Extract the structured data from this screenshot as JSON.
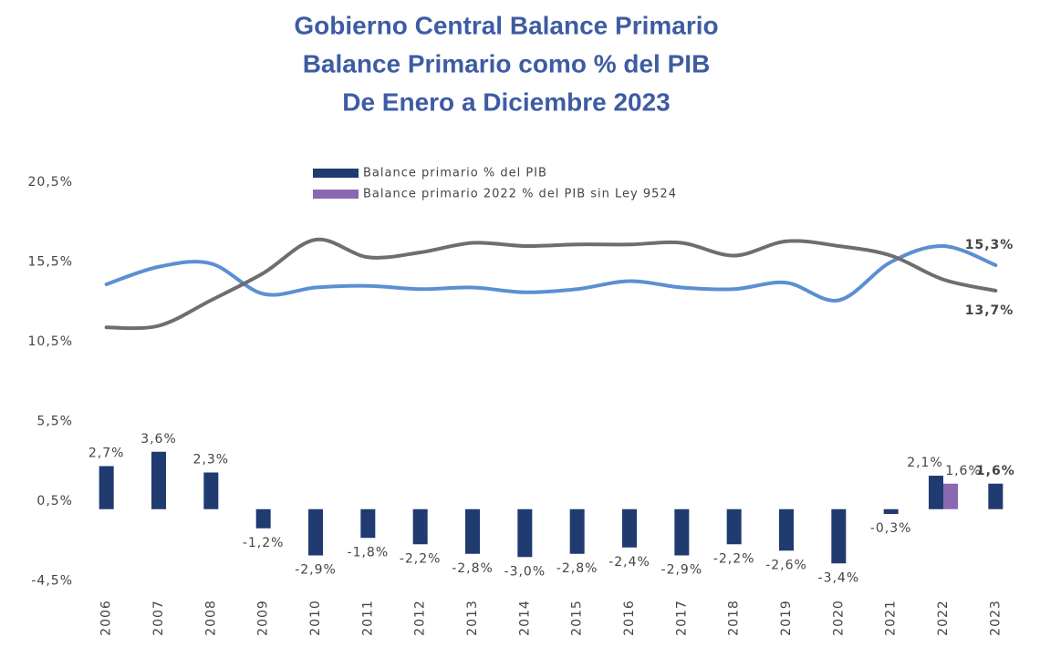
{
  "chart_data": {
    "type": "bar",
    "title": [
      "Gobierno Central  Balance Primario",
      "Balance Primario como % del PIB",
      "De Enero a Diciembre 2023"
    ],
    "categories": [
      "2006",
      "2007",
      "2008",
      "2009",
      "2010",
      "2011",
      "2012",
      "2013",
      "2014",
      "2015",
      "2016",
      "2017",
      "2018",
      "2019",
      "2020",
      "2021",
      "2022",
      "2023"
    ],
    "ylim": [
      -4.5,
      20.5
    ],
    "yticks": [
      {
        "value": 20.5,
        "label": "20,5%"
      },
      {
        "value": 15.5,
        "label": "15,5%"
      },
      {
        "value": 10.5,
        "label": "10,5%"
      },
      {
        "value": 5.5,
        "label": "5,5%"
      },
      {
        "value": 0.5,
        "label": "0,5%"
      },
      {
        "value": -4.5,
        "label": "-4,5%"
      }
    ],
    "grid": false,
    "series": [
      {
        "type": "bar",
        "name": "Balance primario % del PIB",
        "color": "#1f3b70",
        "values": [
          2.7,
          3.6,
          2.3,
          -1.2,
          -2.9,
          -1.8,
          -2.2,
          -2.8,
          -3.0,
          -2.8,
          -2.4,
          -2.9,
          -2.2,
          -2.6,
          -3.4,
          -0.3,
          2.1,
          1.6
        ],
        "value_labels": [
          "2,7%",
          "3,6%",
          "2,3%",
          "-1,2%",
          "-2,9%",
          "-1,8%",
          "-2,2%",
          "-2,8%",
          "-3,0%",
          "-2,8%",
          "-2,4%",
          "-2,9%",
          "-2,2%",
          "-2,6%",
          "-3,4%",
          "-0,3%",
          "2,1%",
          "1,6%"
        ]
      },
      {
        "type": "bar",
        "name": "Balance primario 2022 % del PIB sin Ley 9524",
        "color": "#8a69b0",
        "values": [
          null,
          null,
          null,
          null,
          null,
          null,
          null,
          null,
          null,
          null,
          null,
          null,
          null,
          null,
          null,
          null,
          1.6,
          null
        ],
        "value_labels": [
          null,
          null,
          null,
          null,
          null,
          null,
          null,
          null,
          null,
          null,
          null,
          null,
          null,
          null,
          null,
          null,
          "1,6%",
          null
        ]
      },
      {
        "type": "line",
        "color": "#5b8fd2",
        "values": [
          14.1,
          15.2,
          15.4,
          13.5,
          13.9,
          14.0,
          13.8,
          13.9,
          13.6,
          13.8,
          14.3,
          13.9,
          13.8,
          14.2,
          13.1,
          15.5,
          16.5,
          15.3
        ],
        "value_labels": [
          null,
          null,
          null,
          null,
          null,
          null,
          null,
          null,
          null,
          null,
          null,
          null,
          null,
          null,
          null,
          null,
          null,
          "15,3%"
        ]
      },
      {
        "type": "line",
        "color": "#6e6e6e",
        "values": [
          11.4,
          11.5,
          13.1,
          14.8,
          16.9,
          15.8,
          16.1,
          16.7,
          16.5,
          16.6,
          16.6,
          16.7,
          15.9,
          16.8,
          16.5,
          15.9,
          14.4,
          13.7
        ],
        "value_labels": [
          null,
          null,
          null,
          null,
          null,
          null,
          null,
          null,
          null,
          null,
          null,
          null,
          null,
          null,
          null,
          null,
          null,
          "13,7%"
        ]
      }
    ]
  }
}
